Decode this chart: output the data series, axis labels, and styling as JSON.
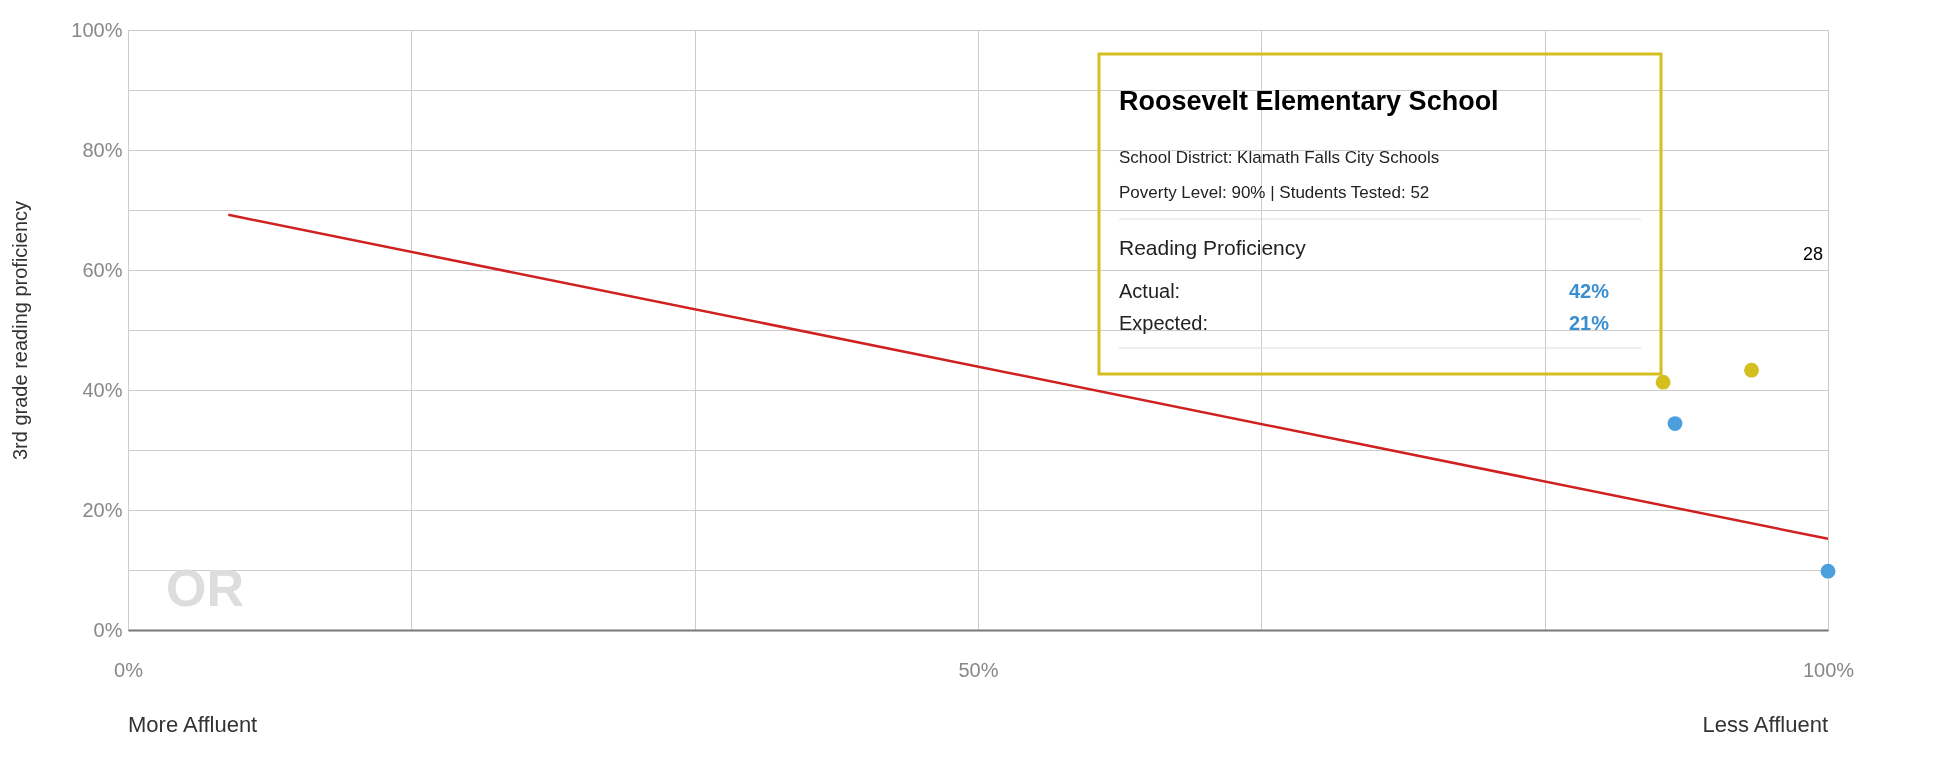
{
  "chart_data": {
    "type": "scatter",
    "ylabel": "3rd grade reading proficiency",
    "xlim": [
      0,
      100
    ],
    "ylim": [
      0,
      100
    ],
    "xticks": [
      {
        "value": 0,
        "label": "0%"
      },
      {
        "value": 16.67,
        "label": null
      },
      {
        "value": 33.33,
        "label": null
      },
      {
        "value": 50,
        "label": "50%"
      },
      {
        "value": 66.67,
        "label": null
      },
      {
        "value": 83.33,
        "label": null
      },
      {
        "value": 100,
        "label": "100%"
      }
    ],
    "yticks": [
      {
        "value": 0,
        "label": "0%"
      },
      {
        "value": 10,
        "label": null
      },
      {
        "value": 20,
        "label": "20%"
      },
      {
        "value": 30,
        "label": null
      },
      {
        "value": 40,
        "label": "40%"
      },
      {
        "value": 50,
        "label": null
      },
      {
        "value": 60,
        "label": "60%"
      },
      {
        "value": 70,
        "label": null
      },
      {
        "value": 80,
        "label": "80%"
      },
      {
        "value": 90,
        "label": null
      },
      {
        "value": 100,
        "label": "100%"
      }
    ],
    "grid": true,
    "marker": "circle",
    "series": [
      {
        "type": "line",
        "color": "#d0201f",
        "x": [
          5.9,
          100
        ],
        "values": [
          69.2,
          15.2
        ],
        "marker": "none"
      },
      {
        "color": "#d4bf1e",
        "x": [
          90.3,
          95.5
        ],
        "values": [
          41.3,
          43.3
        ]
      },
      {
        "color": "#4a9fdc",
        "x": [
          91.0,
          100
        ],
        "values": [
          34.4,
          9.8
        ]
      }
    ],
    "annotations": [
      "OR",
      "28",
      "More Affluent",
      "Less Affluent",
      "Roosevelt Elementary School",
      "School District: Klamath Falls City Schools",
      "Poverty Level: 90% | Students Tested: 52",
      "Reading Proficiency",
      "Actual:",
      "Expected:",
      "42%",
      "21%"
    ]
  }
}
